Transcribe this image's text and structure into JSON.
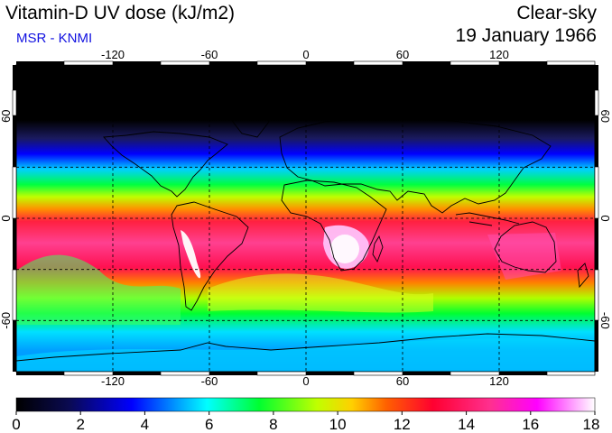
{
  "header": {
    "title": "Vitamin-D UV dose (kJ/m2)",
    "credit": "MSR - KNMI",
    "condition": "Clear-sky",
    "date": "19 January 1966"
  },
  "map": {
    "lon_ticks": [
      "-120",
      "-60",
      "0",
      "60",
      "120"
    ],
    "lat_ticks": [
      "60",
      "0",
      "-60"
    ],
    "lat_ticks_right": [
      "60",
      "0",
      "-60"
    ],
    "lon_range": [
      -180,
      180
    ],
    "lat_range": [
      -90,
      90
    ]
  },
  "colorbar": {
    "labels": [
      "0",
      "2",
      "4",
      "6",
      "8",
      "10",
      "12",
      "14",
      "16",
      "18"
    ],
    "min": 0,
    "max": 18,
    "stops": [
      "#000000",
      "#0a0a50",
      "#0000ff",
      "#00a0ff",
      "#00ffff",
      "#00ff30",
      "#c0ff00",
      "#ffd000",
      "#ff6000",
      "#ff0030",
      "#ff3090",
      "#ff00ff",
      "#ffffff"
    ]
  }
}
